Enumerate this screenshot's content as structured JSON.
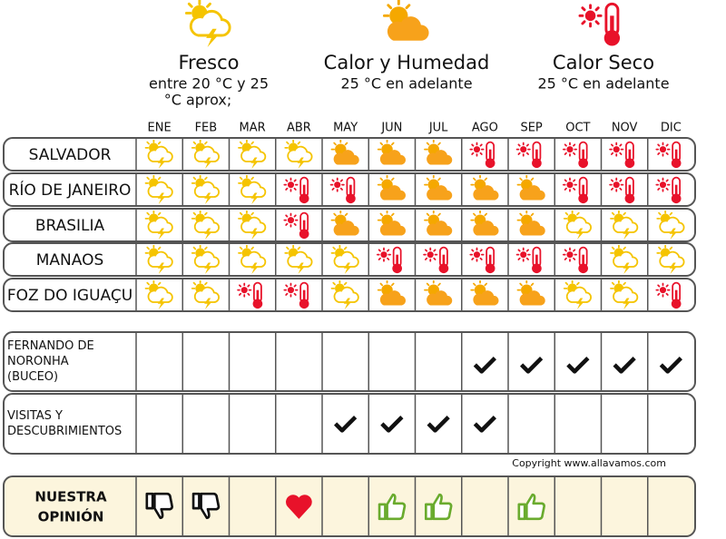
{
  "legend": [
    {
      "title": "Fresco",
      "subtitle": [
        "entre 20 °C y 25",
        "°C aprox;"
      ]
    },
    {
      "title": "Calor y Humedad",
      "subtitle": [
        "25 °C en adelante"
      ]
    },
    {
      "title": "Calor Seco",
      "subtitle": [
        "25 °C en adelante"
      ]
    }
  ],
  "months": [
    "ENE",
    "FEB",
    "MAR",
    "ABR",
    "MAY",
    "JUN",
    "JUL",
    "AGO",
    "SEP",
    "OCT",
    "NOV",
    "DIC"
  ],
  "destinations": [
    "SALVADOR",
    "RÍO DE JANEIRO",
    "BRASILIA",
    "MANAOS",
    "FOZ DO IGUAÇU"
  ],
  "activities": [
    {
      "lines": [
        "FERNANDO DE",
        "NORONHA",
        "(BUCEO)"
      ]
    },
    {
      "lines": [
        "VISITAS Y",
        "DESCUBRIMIENTOS"
      ]
    }
  ],
  "copyright": "Copyright www.allavamos.com",
  "opinion_label": [
    "NUESTRA",
    "OPINIÓN"
  ]
}
